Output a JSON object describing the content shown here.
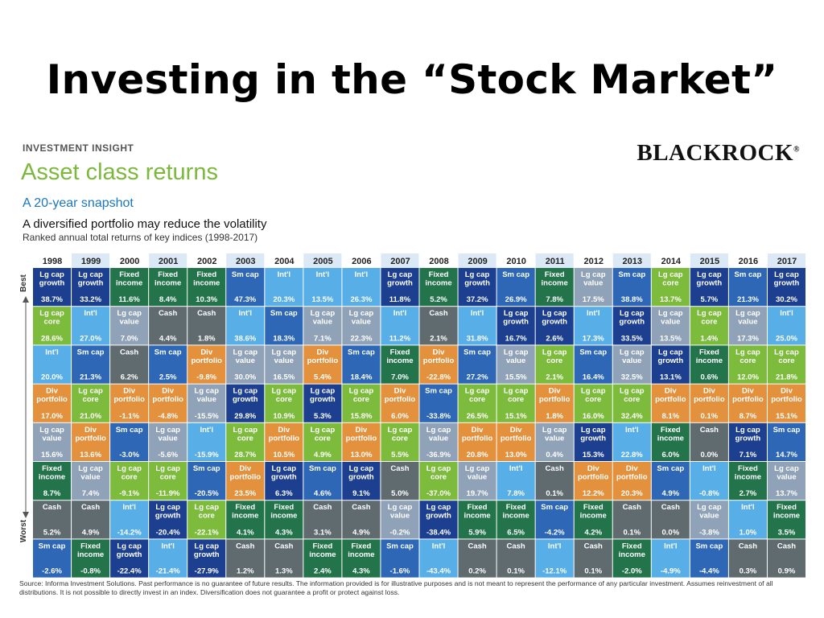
{
  "slide": {
    "title": "Investing in the “Stock Market”"
  },
  "header": {
    "kicker": "INVESTMENT INSIGHT",
    "title": "Asset class returns",
    "snapshot": "A 20-year snapshot",
    "tagline": "A diversified portfolio may reduce the volatility",
    "subtitle": "Ranked annual total returns of key indices (1998-2017)",
    "logo": "BLACKROCK",
    "logo_mark": "®"
  },
  "axis": {
    "best": "Best",
    "worst": "Worst"
  },
  "colors": {
    "Lg cap growth": "#1d3f8f",
    "Lg cap core": "#7dbb3c",
    "Lg cap value": "#8fa2b8",
    "Int'l": "#58aee6",
    "Sm cap": "#2d67b6",
    "Div portfolio": "#e4913d",
    "Fixed income": "#23744b",
    "Cash": "#606b6f"
  },
  "labels": {
    "Lg cap growth": [
      "Lg cap",
      "growth"
    ],
    "Lg cap core": [
      "Lg cap",
      "core"
    ],
    "Lg cap value": [
      "Lg cap",
      "value"
    ],
    "Int'l": [
      "Int'l"
    ],
    "Sm cap": [
      "Sm cap"
    ],
    "Div portfolio": [
      "Div",
      "portfolio"
    ],
    "Fixed income": [
      "Fixed",
      "income"
    ],
    "Cash": [
      "Cash"
    ]
  },
  "chart_data": {
    "type": "table",
    "years": [
      "1998",
      "1999",
      "2000",
      "2001",
      "2002",
      "2003",
      "2004",
      "2005",
      "2006",
      "2007",
      "2008",
      "2009",
      "2010",
      "2011",
      "2012",
      "2013",
      "2014",
      "2015",
      "2016",
      "2017"
    ],
    "columns": [
      [
        [
          "Lg cap growth",
          "38.7%"
        ],
        [
          "Lg cap core",
          "28.6%"
        ],
        [
          "Int'l",
          "20.0%"
        ],
        [
          "Div portfolio",
          "17.0%"
        ],
        [
          "Lg cap value",
          "15.6%"
        ],
        [
          "Fixed income",
          "8.7%"
        ],
        [
          "Cash",
          "5.2%"
        ],
        [
          "Sm cap",
          "-2.6%"
        ]
      ],
      [
        [
          "Lg cap growth",
          "33.2%"
        ],
        [
          "Int'l",
          "27.0%"
        ],
        [
          "Sm cap",
          "21.3%"
        ],
        [
          "Lg cap core",
          "21.0%"
        ],
        [
          "Div portfolio",
          "13.6%"
        ],
        [
          "Lg cap value",
          "7.4%"
        ],
        [
          "Cash",
          "4.9%"
        ],
        [
          "Fixed income",
          "-0.8%"
        ]
      ],
      [
        [
          "Fixed income",
          "11.6%"
        ],
        [
          "Lg cap value",
          "7.0%"
        ],
        [
          "Cash",
          "6.2%"
        ],
        [
          "Div portfolio",
          "-1.1%"
        ],
        [
          "Sm cap",
          "-3.0%"
        ],
        [
          "Lg cap core",
          "-9.1%"
        ],
        [
          "Int'l",
          "-14.2%"
        ],
        [
          "Lg cap growth",
          "-22.4%"
        ]
      ],
      [
        [
          "Fixed income",
          "8.4%"
        ],
        [
          "Cash",
          "4.4%"
        ],
        [
          "Sm cap",
          "2.5%"
        ],
        [
          "Div portfolio",
          "-4.8%"
        ],
        [
          "Lg cap value",
          "-5.6%"
        ],
        [
          "Lg cap core",
          "-11.9%"
        ],
        [
          "Lg cap growth",
          "-20.4%"
        ],
        [
          "Int'l",
          "-21.4%"
        ]
      ],
      [
        [
          "Fixed income",
          "10.3%"
        ],
        [
          "Cash",
          "1.8%"
        ],
        [
          "Div portfolio",
          "-9.8%"
        ],
        [
          "Lg cap value",
          "-15.5%"
        ],
        [
          "Int'l",
          "-15.9%"
        ],
        [
          "Sm cap",
          "-20.5%"
        ],
        [
          "Lg cap core",
          "-22.1%"
        ],
        [
          "Lg cap growth",
          "-27.9%"
        ]
      ],
      [
        [
          "Sm cap",
          "47.3%"
        ],
        [
          "Int'l",
          "38.6%"
        ],
        [
          "Lg cap value",
          "30.0%"
        ],
        [
          "Lg cap growth",
          "29.8%"
        ],
        [
          "Lg cap core",
          "28.7%"
        ],
        [
          "Div portfolio",
          "23.5%"
        ],
        [
          "Fixed income",
          "4.1%"
        ],
        [
          "Cash",
          "1.2%"
        ]
      ],
      [
        [
          "Int'l",
          "20.3%"
        ],
        [
          "Sm cap",
          "18.3%"
        ],
        [
          "Lg cap value",
          "16.5%"
        ],
        [
          "Lg cap core",
          "10.9%"
        ],
        [
          "Div portfolio",
          "10.5%"
        ],
        [
          "Lg cap growth",
          "6.3%"
        ],
        [
          "Fixed income",
          "4.3%"
        ],
        [
          "Cash",
          "1.3%"
        ]
      ],
      [
        [
          "Int'l",
          "13.5%"
        ],
        [
          "Lg cap value",
          "7.1%"
        ],
        [
          "Div portfolio",
          "5.4%"
        ],
        [
          "Lg cap growth",
          "5.3%"
        ],
        [
          "Lg cap core",
          "4.9%"
        ],
        [
          "Sm cap",
          "4.6%"
        ],
        [
          "Cash",
          "3.1%"
        ],
        [
          "Fixed income",
          "2.4%"
        ]
      ],
      [
        [
          "Int'l",
          "26.3%"
        ],
        [
          "Lg cap value",
          "22.3%"
        ],
        [
          "Sm cap",
          "18.4%"
        ],
        [
          "Lg cap core",
          "15.8%"
        ],
        [
          "Div portfolio",
          "13.0%"
        ],
        [
          "Lg cap growth",
          "9.1%"
        ],
        [
          "Cash",
          "4.9%"
        ],
        [
          "Fixed income",
          "4.3%"
        ]
      ],
      [
        [
          "Lg cap growth",
          "11.8%"
        ],
        [
          "Int'l",
          "11.2%"
        ],
        [
          "Fixed income",
          "7.0%"
        ],
        [
          "Div portfolio",
          "6.0%"
        ],
        [
          "Lg cap core",
          "5.5%"
        ],
        [
          "Cash",
          "5.0%"
        ],
        [
          "Lg cap value",
          "-0.2%"
        ],
        [
          "Sm cap",
          "-1.6%"
        ]
      ],
      [
        [
          "Fixed income",
          "5.2%"
        ],
        [
          "Cash",
          "2.1%"
        ],
        [
          "Div portfolio",
          "-22.8%"
        ],
        [
          "Sm cap",
          "-33.8%"
        ],
        [
          "Lg cap value",
          "-36.9%"
        ],
        [
          "Lg cap core",
          "-37.0%"
        ],
        [
          "Lg cap growth",
          "-38.4%"
        ],
        [
          "Int'l",
          "-43.4%"
        ]
      ],
      [
        [
          "Lg cap growth",
          "37.2%"
        ],
        [
          "Int'l",
          "31.8%"
        ],
        [
          "Sm cap",
          "27.2%"
        ],
        [
          "Lg cap core",
          "26.5%"
        ],
        [
          "Div portfolio",
          "20.8%"
        ],
        [
          "Lg cap value",
          "19.7%"
        ],
        [
          "Fixed income",
          "5.9%"
        ],
        [
          "Cash",
          "0.2%"
        ]
      ],
      [
        [
          "Sm cap",
          "26.9%"
        ],
        [
          "Lg cap growth",
          "16.7%"
        ],
        [
          "Lg cap value",
          "15.5%"
        ],
        [
          "Lg cap core",
          "15.1%"
        ],
        [
          "Div portfolio",
          "13.0%"
        ],
        [
          "Int'l",
          "7.8%"
        ],
        [
          "Fixed income",
          "6.5%"
        ],
        [
          "Cash",
          "0.1%"
        ]
      ],
      [
        [
          "Fixed income",
          "7.8%"
        ],
        [
          "Lg cap growth",
          "2.6%"
        ],
        [
          "Lg cap core",
          "2.1%"
        ],
        [
          "Div portfolio",
          "1.8%"
        ],
        [
          "Lg cap value",
          "0.4%"
        ],
        [
          "Cash",
          "0.1%"
        ],
        [
          "Sm cap",
          "-4.2%"
        ],
        [
          "Int'l",
          "-12.1%"
        ]
      ],
      [
        [
          "Lg cap value",
          "17.5%"
        ],
        [
          "Int'l",
          "17.3%"
        ],
        [
          "Sm cap",
          "16.4%"
        ],
        [
          "Lg cap core",
          "16.0%"
        ],
        [
          "Lg cap growth",
          "15.3%"
        ],
        [
          "Div portfolio",
          "12.2%"
        ],
        [
          "Fixed income",
          "4.2%"
        ],
        [
          "Cash",
          "0.1%"
        ]
      ],
      [
        [
          "Sm cap",
          "38.8%"
        ],
        [
          "Lg cap growth",
          "33.5%"
        ],
        [
          "Lg cap value",
          "32.5%"
        ],
        [
          "Lg cap core",
          "32.4%"
        ],
        [
          "Int'l",
          "22.8%"
        ],
        [
          "Div portfolio",
          "20.3%"
        ],
        [
          "Cash",
          "0.1%"
        ],
        [
          "Fixed income",
          "-2.0%"
        ]
      ],
      [
        [
          "Lg cap core",
          "13.7%"
        ],
        [
          "Lg cap value",
          "13.5%"
        ],
        [
          "Lg cap growth",
          "13.1%"
        ],
        [
          "Div portfolio",
          "8.1%"
        ],
        [
          "Fixed income",
          "6.0%"
        ],
        [
          "Sm cap",
          "4.9%"
        ],
        [
          "Cash",
          "0.0%"
        ],
        [
          "Int'l",
          "-4.9%"
        ]
      ],
      [
        [
          "Lg cap growth",
          "5.7%"
        ],
        [
          "Lg cap core",
          "1.4%"
        ],
        [
          "Fixed income",
          "0.6%"
        ],
        [
          "Div portfolio",
          "0.1%"
        ],
        [
          "Cash",
          "0.0%"
        ],
        [
          "Int'l",
          "-0.8%"
        ],
        [
          "Lg cap value",
          "-3.8%"
        ],
        [
          "Sm cap",
          "-4.4%"
        ]
      ],
      [
        [
          "Sm cap",
          "21.3%"
        ],
        [
          "Lg cap value",
          "17.3%"
        ],
        [
          "Lg cap core",
          "12.0%"
        ],
        [
          "Div portfolio",
          "8.7%"
        ],
        [
          "Lg cap growth",
          "7.1%"
        ],
        [
          "Fixed income",
          "2.7%"
        ],
        [
          "Int'l",
          "1.0%"
        ],
        [
          "Cash",
          "0.3%"
        ]
      ],
      [
        [
          "Lg cap growth",
          "30.2%"
        ],
        [
          "Int'l",
          "25.0%"
        ],
        [
          "Lg cap core",
          "21.8%"
        ],
        [
          "Div portfolio",
          "15.1%"
        ],
        [
          "Sm cap",
          "14.7%"
        ],
        [
          "Lg cap value",
          "13.7%"
        ],
        [
          "Fixed income",
          "3.5%"
        ],
        [
          "Cash",
          "0.9%"
        ]
      ]
    ]
  },
  "footer": {
    "source": "Source: Informa Investment Solutions. Past performance is no guarantee of future results. The information provided is for illustrative purposes and is not meant to represent the performance of any particular investment. Assumes reinvestment of all distributions. It is not possible to directly invest in an index. Diversification does not guarantee a profit or protect against loss."
  }
}
